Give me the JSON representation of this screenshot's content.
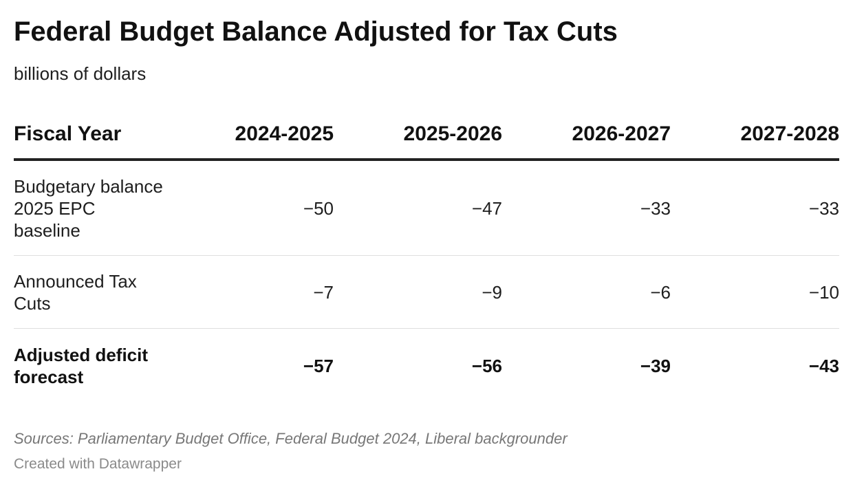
{
  "chart_data": {
    "type": "table",
    "title": "Federal Budget Balance Adjusted for Tax Cuts",
    "subtitle": "billions of dollars",
    "header": [
      "Fiscal Year",
      "2024-2025",
      "2025-2026",
      "2026-2027",
      "2027-2028"
    ],
    "rows": [
      {
        "label": "Budgetary balance 2025 EPC baseline",
        "values": [
          "−50",
          "−47",
          "−33",
          "−33"
        ]
      },
      {
        "label": "Announced Tax Cuts",
        "values": [
          "−7",
          "−9",
          "−6",
          "−10"
        ]
      },
      {
        "label": "Adjusted deficit forecast",
        "values": [
          "−57",
          "−56",
          "−39",
          "−43"
        ],
        "bold": true
      }
    ],
    "source": "Sources: Parliamentary Budget Office, Federal Budget 2024, Liberal backgrounder",
    "credit": "Created with Datawrapper"
  }
}
